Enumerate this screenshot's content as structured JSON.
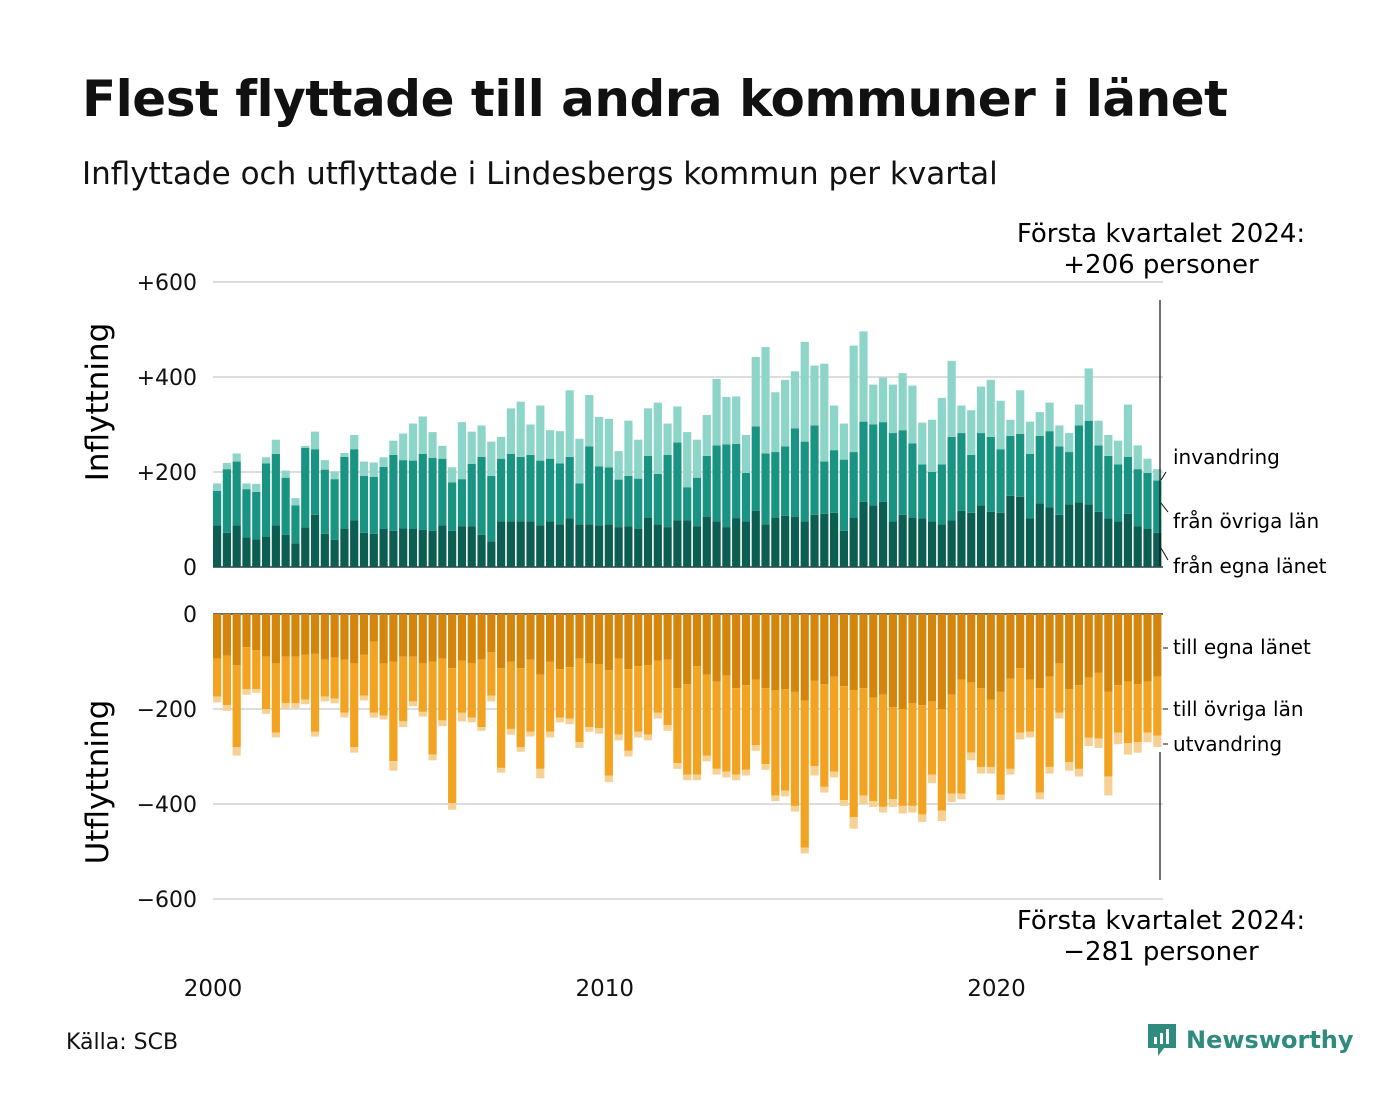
{
  "title": "Flest flyttade till andra kommuner i länet",
  "subtitle": "Inflyttade och utflyttade i Lindesbergs kommun per kvartal",
  "source": "Källa: SCB",
  "logo_text": "Newsworthy",
  "colors": {
    "in_egna": "#0d5e52",
    "in_ovriga": "#1a9482",
    "in_invandring": "#8dd5c9",
    "out_egna": "#d4850c",
    "out_ovriga": "#f2a322",
    "out_utvandring": "#f7d193",
    "grid": "#dddddd"
  },
  "chart_data": {
    "type": "bar",
    "layout": "diverging stacked bars, quarterly",
    "x_start": "2000 Q1",
    "x_end": "2024 Q1",
    "x_ticks": [
      "2000",
      "2010",
      "2020"
    ],
    "grid": true,
    "top_panel": {
      "ylabel": "Inflyttning",
      "ylim": [
        0,
        600
      ],
      "y_ticks": [
        "0",
        "+200",
        "+400",
        "+600"
      ],
      "series_labels": [
        "från egna länet",
        "från övriga län",
        "invandring"
      ],
      "annotation": [
        "Första kvartalet 2024:",
        "+206 personer"
      ],
      "series": [
        {
          "name": "från egna länet",
          "values": [
            88,
            72,
            88,
            62,
            58,
            64,
            88,
            68,
            50,
            83,
            110,
            70,
            57,
            80,
            98,
            72,
            70,
            80,
            76,
            81,
            80,
            78,
            76,
            88,
            76,
            86,
            86,
            68,
            54,
            96,
            96,
            96,
            96,
            88,
            96,
            90,
            102,
            90,
            90,
            88,
            90,
            84,
            86,
            80,
            104,
            90,
            84,
            98,
            98,
            86,
            106,
            96,
            84,
            103,
            96,
            118,
            90,
            104,
            108,
            106,
            96,
            110,
            112,
            114,
            76,
            104,
            137,
            130,
            137,
            96,
            110,
            104,
            102,
            96,
            90,
            98,
            118,
            114,
            130,
            116,
            114,
            150,
            148,
            102,
            134,
            126,
            110,
            132,
            136,
            132,
            116,
            102,
            96,
            112,
            86,
            80,
            72
          ]
        },
        {
          "name": "från övriga län",
          "values": [
            72,
            134,
            134,
            102,
            100,
            154,
            150,
            120,
            80,
            168,
            138,
            135,
            128,
            152,
            150,
            120,
            120,
            131,
            160,
            144,
            144,
            160,
            154,
            140,
            102,
            99,
            131,
            164,
            138,
            132,
            142,
            136,
            140,
            136,
            132,
            128,
            130,
            86,
            164,
            124,
            120,
            100,
            106,
            106,
            130,
            106,
            152,
            164,
            70,
            102,
            128,
            160,
            174,
            156,
            102,
            178,
            149,
            138,
            146,
            186,
            168,
            188,
            110,
            132,
            150,
            138,
            169,
            170,
            168,
            186,
            178,
            156,
            114,
            104,
            126,
            176,
            164,
            122,
            152,
            158,
            134,
            126,
            132,
            136,
            142,
            160,
            144,
            110,
            162,
            176,
            140,
            132,
            120,
            120,
            120,
            118,
            110
          ]
        },
        {
          "name": "invandring",
          "values": [
            16,
            13,
            17,
            12,
            17,
            13,
            30,
            15,
            15,
            4,
            37,
            20,
            16,
            8,
            30,
            30,
            30,
            20,
            30,
            56,
            78,
            79,
            54,
            27,
            32,
            120,
            68,
            66,
            72,
            46,
            96,
            116,
            64,
            116,
            60,
            68,
            140,
            94,
            108,
            104,
            102,
            60,
            116,
            82,
            100,
            150,
            66,
            76,
            116,
            80,
            86,
            140,
            100,
            100,
            80,
            146,
            224,
            126,
            140,
            120,
            210,
            126,
            206,
            94,
            76,
            224,
            190,
            84,
            94,
            102,
            120,
            122,
            88,
            110,
            140,
            160,
            58,
            94,
            98,
            120,
            102,
            34,
            92,
            68,
            50,
            60,
            44,
            40,
            44,
            110,
            52,
            44,
            50,
            110,
            50,
            30,
            24
          ]
        }
      ]
    },
    "bottom_panel": {
      "ylabel": "Utflyttning",
      "ylim": [
        -600,
        0
      ],
      "y_ticks": [
        "0",
        "−200",
        "−400",
        "−600"
      ],
      "series_labels": [
        "till egna länet",
        "till övriga län",
        "utvandring"
      ],
      "annotation": [
        "Första kvartalet 2024:",
        "−281 personer"
      ],
      "series": [
        {
          "name": "till egna länet",
          "values": [
            -94,
            -88,
            -108,
            -70,
            -76,
            -90,
            -104,
            -90,
            -90,
            -86,
            -84,
            -96,
            -92,
            -96,
            -104,
            -86,
            -58,
            -104,
            -100,
            -90,
            -90,
            -104,
            -100,
            -94,
            -114,
            -98,
            -104,
            -96,
            -80,
            -114,
            -100,
            -114,
            -96,
            -128,
            -100,
            -116,
            -112,
            -94,
            -104,
            -106,
            -118,
            -94,
            -116,
            -110,
            -108,
            -98,
            -96,
            -156,
            -148,
            -110,
            -128,
            -142,
            -130,
            -156,
            -150,
            -138,
            -156,
            -160,
            -158,
            -164,
            -182,
            -140,
            -148,
            -132,
            -152,
            -160,
            -156,
            -176,
            -170,
            -196,
            -200,
            -188,
            -192,
            -184,
            -200,
            -170,
            -138,
            -144,
            -156,
            -180,
            -164,
            -136,
            -114,
            -138,
            -156,
            -132,
            -104,
            -158,
            -150,
            -134,
            -124,
            -164,
            -150,
            -142,
            -148,
            -142,
            -132
          ]
        },
        {
          "name": "till övriga län",
          "values": [
            -80,
            -104,
            -172,
            -88,
            -82,
            -110,
            -146,
            -98,
            -98,
            -94,
            -164,
            -78,
            -86,
            -112,
            -176,
            -86,
            -150,
            -110,
            -210,
            -136,
            -94,
            -102,
            -196,
            -130,
            -284,
            -110,
            -114,
            -142,
            -92,
            -210,
            -142,
            -166,
            -152,
            -198,
            -148,
            -102,
            -108,
            -176,
            -134,
            -134,
            -222,
            -160,
            -172,
            -138,
            -146,
            -110,
            -138,
            -158,
            -190,
            -228,
            -170,
            -184,
            -202,
            -182,
            -178,
            -138,
            -160,
            -222,
            -214,
            -240,
            -310,
            -180,
            -216,
            -200,
            -240,
            -268,
            -226,
            -218,
            -236,
            -194,
            -204,
            -216,
            -230,
            -154,
            -214,
            -208,
            -240,
            -148,
            -166,
            -142,
            -216,
            -190,
            -136,
            -110,
            -220,
            -190,
            -104,
            -154,
            -176,
            -126,
            -138,
            -178,
            -100,
            -130,
            -122,
            -108,
            -124
          ]
        },
        {
          "name": "utvandring",
          "values": [
            -12,
            -12,
            -18,
            -12,
            -8,
            -10,
            -10,
            -12,
            -10,
            -10,
            -10,
            -10,
            -10,
            -10,
            -12,
            -10,
            -10,
            -8,
            -20,
            -12,
            -10,
            -10,
            -12,
            -12,
            -14,
            -18,
            -10,
            -8,
            -12,
            -10,
            -12,
            -10,
            -10,
            -20,
            -12,
            -10,
            -12,
            -12,
            -10,
            -12,
            -14,
            -12,
            -12,
            -12,
            -12,
            -12,
            -12,
            -12,
            -12,
            -12,
            -12,
            -12,
            -12,
            -12,
            -12,
            -12,
            -12,
            -12,
            -12,
            -12,
            -12,
            -20,
            -12,
            -12,
            -12,
            -24,
            -18,
            -12,
            -12,
            -16,
            -16,
            -14,
            -16,
            -18,
            -22,
            -18,
            -12,
            -16,
            -14,
            -14,
            -12,
            -12,
            -14,
            -12,
            -14,
            -14,
            -12,
            -18,
            -16,
            -18,
            -20,
            -40,
            -24,
            -24,
            -22,
            -20,
            -24
          ]
        }
      ]
    }
  }
}
